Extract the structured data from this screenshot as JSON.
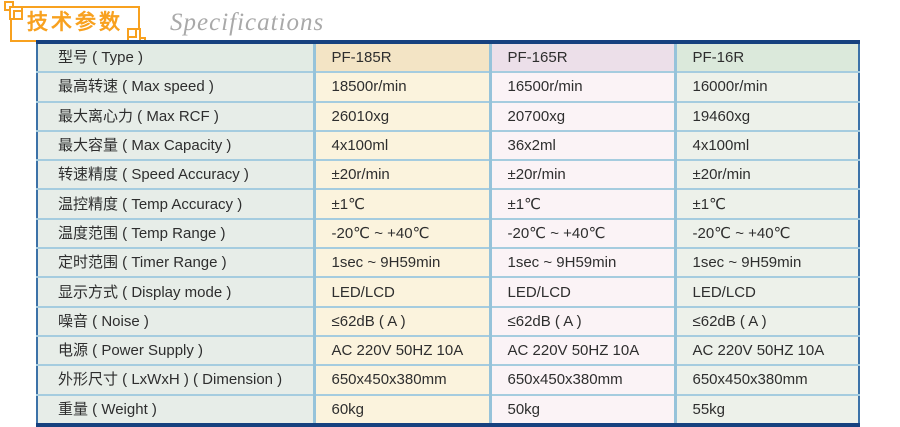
{
  "header": {
    "title_cn": "技术参数",
    "title_en": "Specifications"
  },
  "colors": {
    "accent_orange": "#F8A11F",
    "subtitle_gray": "#A9A9A9",
    "table_outer_border": "#16417F",
    "table_side_border": "#3C72A8",
    "grid_line_vertical": "#96C3DA",
    "grid_line_horizontal": "#A5CCDF",
    "label_column_bg": "#E7EDE8",
    "col_pf185r_bg": "#FBF3DD",
    "col_pf165r_bg": "#FBF3F6",
    "col_pf16r_bg": "#EDF1EA",
    "col_pf185r_header_bg": "#F3E4C5",
    "col_pf165r_header_bg": "#ECDFE9",
    "col_pf16r_header_bg": "#DBE9DB"
  },
  "table": {
    "rows": [
      {
        "label": "型号 ( Type )",
        "values": [
          "PF-185R",
          "PF-165R",
          "PF-16R"
        ],
        "header": true
      },
      {
        "label": "最高转速 ( Max speed )",
        "values": [
          "18500r/min",
          "16500r/min",
          "16000r/min"
        ]
      },
      {
        "label": "最大离心力 ( Max RCF )",
        "values": [
          "26010xg",
          "20700xg",
          "19460xg"
        ]
      },
      {
        "label": "最大容量 ( Max Capacity )",
        "values": [
          "4x100ml",
          "36x2ml",
          "4x100ml"
        ]
      },
      {
        "label": "转速精度 ( Speed Accuracy )",
        "values": [
          "±20r/min",
          "±20r/min",
          "±20r/min"
        ]
      },
      {
        "label": "温控精度 ( Temp Accuracy )",
        "values": [
          "±1℃",
          "±1℃",
          "±1℃"
        ]
      },
      {
        "label": "温度范围 ( Temp Range )",
        "values": [
          "-20℃ ~ +40℃",
          "-20℃ ~ +40℃",
          "-20℃ ~ +40℃"
        ]
      },
      {
        "label": "定时范围 ( Timer Range )",
        "values": [
          "1sec ~ 9H59min",
          "1sec ~ 9H59min",
          "1sec ~ 9H59min"
        ]
      },
      {
        "label": "显示方式 ( Display mode )",
        "values": [
          "LED/LCD",
          "LED/LCD",
          "LED/LCD"
        ]
      },
      {
        "label": "噪音 ( Noise )",
        "values": [
          "≤62dB ( A )",
          "≤62dB ( A )",
          "≤62dB ( A )"
        ]
      },
      {
        "label": "电源 ( Power Supply )",
        "values": [
          "AC 220V 50HZ 10A",
          "AC 220V 50HZ 10A",
          "AC 220V 50HZ 10A"
        ]
      },
      {
        "label": "外形尺寸 ( LxWxH ) ( Dimension )",
        "values": [
          "650x450x380mm",
          "650x450x380mm",
          "650x450x380mm"
        ]
      },
      {
        "label": "重量 ( Weight )",
        "values": [
          "60kg",
          "50kg",
          "55kg"
        ]
      }
    ]
  }
}
